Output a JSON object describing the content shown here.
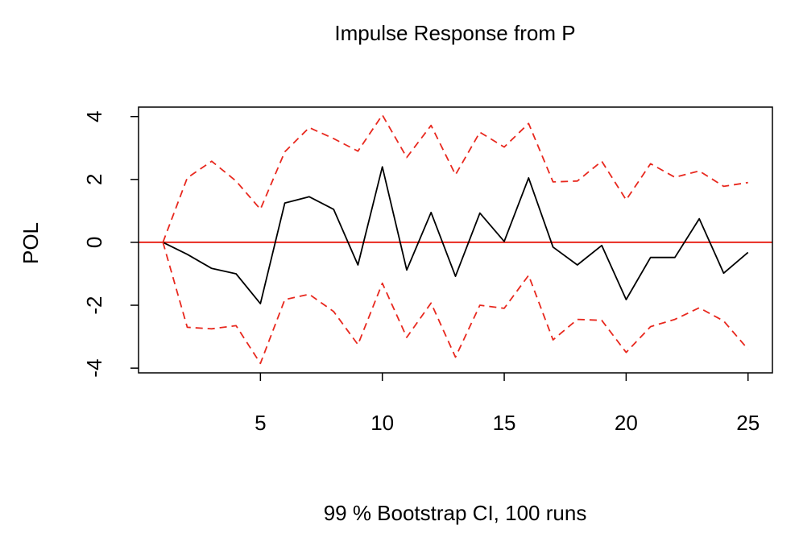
{
  "chart_data": {
    "type": "line",
    "title": "Impulse Response from P",
    "xlabel": "99 % Bootstrap CI,  100 runs",
    "ylabel": "POL",
    "xlim": [
      0,
      26
    ],
    "ylim": [
      -4.15,
      4.3
    ],
    "x_ticks": [
      5,
      10,
      15,
      20,
      25
    ],
    "y_ticks": [
      -4,
      -2,
      0,
      2,
      4
    ],
    "grid": false,
    "legend": "none",
    "x": [
      1,
      2,
      3,
      4,
      5,
      6,
      7,
      8,
      9,
      10,
      11,
      12,
      13,
      14,
      15,
      16,
      17,
      18,
      19,
      20,
      21,
      22,
      23,
      24,
      25
    ],
    "series": [
      {
        "role": "estimate",
        "style": "solid",
        "color": "#000000",
        "values": [
          0.0,
          -0.38,
          -0.83,
          -1.0,
          -1.95,
          1.25,
          1.45,
          1.05,
          -0.72,
          2.4,
          -0.88,
          0.95,
          -1.08,
          0.93,
          0.03,
          2.05,
          -0.15,
          -0.72,
          -0.1,
          -1.82,
          -0.48,
          -0.48,
          0.75,
          -0.98,
          -0.32
        ]
      },
      {
        "role": "upper",
        "style": "dashed",
        "color": "#e8281e",
        "values": [
          0.0,
          2.05,
          2.58,
          1.95,
          1.05,
          2.88,
          3.65,
          3.3,
          2.9,
          4.05,
          2.7,
          3.72,
          2.15,
          3.5,
          3.03,
          3.78,
          1.92,
          1.95,
          2.58,
          1.35,
          2.5,
          2.07,
          2.27,
          1.78,
          1.9
        ]
      },
      {
        "role": "lower",
        "style": "dashed",
        "color": "#e8281e",
        "values": [
          0.0,
          -2.7,
          -2.75,
          -2.65,
          -3.85,
          -1.82,
          -1.65,
          -2.2,
          -3.25,
          -1.3,
          -3.02,
          -1.93,
          -3.65,
          -2.0,
          -2.1,
          -1.05,
          -3.1,
          -2.45,
          -2.48,
          -3.5,
          -2.68,
          -2.45,
          -2.08,
          -2.5,
          -3.4
        ]
      }
    ],
    "zero_line": {
      "value": 0,
      "color": "#e8281e"
    }
  }
}
